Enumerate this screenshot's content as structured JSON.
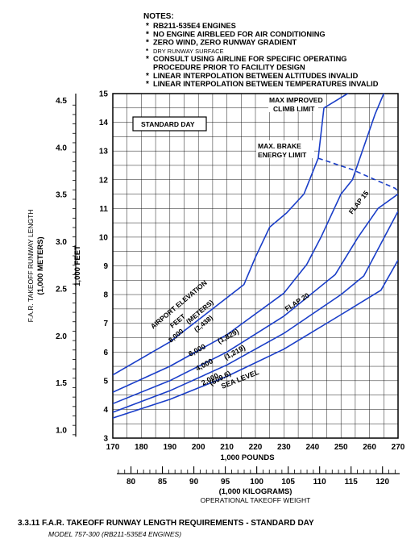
{
  "notes": {
    "title": "NOTES:",
    "items": [
      {
        "bullet": "*",
        "text": "RB211-535E4 ENGINES",
        "style": "bold"
      },
      {
        "bullet": "*",
        "text": "NO ENGINE AIRBLEED FOR AIR CONDITIONING",
        "style": "bold"
      },
      {
        "bullet": "*",
        "text": "ZERO WIND, ZERO RUNWAY GRADIENT",
        "style": "bold"
      },
      {
        "bullet": "*",
        "text": "DRY RUNWAY SURFACE",
        "style": "small"
      },
      {
        "bullet": "*",
        "text": "CONSULT USING AIRLINE FOR SPECIFIC OPERATING",
        "style": "bold"
      },
      {
        "bullet": "",
        "text": "PROCEDURE PRIOR TO FACILITY DESIGN",
        "style": "bold"
      },
      {
        "bullet": "*",
        "text": "LINEAR INTERPOLATION BETWEEN ALTITUDES INVALID",
        "style": "bold"
      },
      {
        "bullet": "*",
        "text": "LINEAR INTERPOLATION BETWEEN TEMPERATURES INVALID",
        "style": "bold"
      }
    ]
  },
  "caption": {
    "title": "3.3.11  F.A.R. TAKEOFF RUNWAY LENGTH REQUIREMENTS - STANDARD DAY",
    "subtitle": "MODEL  757-300 (RB211-535E4 ENGINES)"
  },
  "chart_data": {
    "type": "line",
    "condition_label": "STANDARD DAY",
    "xlabel": "1,000 POUNDS",
    "xlim": [
      170,
      270
    ],
    "x_ticks": [
      170,
      180,
      190,
      200,
      210,
      220,
      230,
      240,
      250,
      260,
      270
    ],
    "x2label": "(1,000 KILOGRAMS)",
    "x2_caption": "OPERATIONAL TAKEOFF WEIGHT",
    "x2_ticks": [
      80,
      85,
      90,
      95,
      100,
      105,
      110,
      115,
      120
    ],
    "ylabel": "1,000 FEET",
    "ylim": [
      3,
      15
    ],
    "y_ticks": [
      3,
      4,
      5,
      6,
      7,
      8,
      9,
      10,
      11,
      12,
      13,
      14,
      15
    ],
    "y2label": "F.A.R. TAKEOFF RUNWAY LENGTH",
    "y2label_units": "(1,000 METERS)",
    "y2_ticks": [
      "1.0",
      "1.5",
      "2.0",
      "2.5",
      "3.0",
      "3.5",
      "4.0",
      "4.5"
    ],
    "grid": true,
    "series": [
      {
        "name": "SEA LEVEL",
        "label_lines": [
          "SEA LEVEL"
        ],
        "x": [
          170,
          190,
          210,
          230,
          250,
          264,
          270
        ],
        "y": [
          3.7,
          4.35,
          5.15,
          6.1,
          7.3,
          8.15,
          9.2
        ]
      },
      {
        "name": "2,000 (609.6)",
        "label_lines": [
          "2,000",
          "(609.6)"
        ],
        "x": [
          170,
          190,
          210,
          230,
          250,
          258,
          270
        ],
        "y": [
          3.9,
          4.65,
          5.55,
          6.65,
          8.0,
          8.65,
          10.9
        ]
      },
      {
        "name": "4,000 (1,219)",
        "label_lines": [
          "4,000",
          "(1,219)"
        ],
        "x": [
          170,
          190,
          210,
          230,
          248,
          256,
          263,
          270
        ],
        "y": [
          4.2,
          5.0,
          6.0,
          7.25,
          8.7,
          10.0,
          11.0,
          11.5
        ]
      },
      {
        "name": "6,000 (1,829)",
        "label_lines": [
          "6,000",
          "(1,829)"
        ],
        "x": [
          170,
          190,
          210,
          230,
          238,
          243,
          250,
          254,
          262,
          265,
          270
        ],
        "y": [
          4.6,
          5.5,
          6.6,
          8.05,
          9.05,
          10.0,
          11.5,
          12.0,
          14.3,
          15.0,
          15.7
        ]
      },
      {
        "name": "8,000 (2,438)",
        "label_lines": [
          "AIRPORT ELEVATION",
          "FEET",
          "(METERS)",
          "8,000",
          "(2,438)"
        ],
        "x": [
          170,
          190,
          216,
          220,
          225,
          231,
          237,
          242
        ],
        "y": [
          5.2,
          6.35,
          8.35,
          9.3,
          10.35,
          10.85,
          11.5,
          12.75
        ]
      }
    ],
    "curve_labels": [
      "FLAP 15",
      "FLAP 20"
    ],
    "limit_lines": [
      {
        "name": "MAX. BRAKE ENERGY LIMIT",
        "label_lines": [
          "MAX. BRAKE",
          "ENERGY LIMIT"
        ],
        "x": [
          242,
          254,
          262,
          269,
          270
        ],
        "y": [
          12.75,
          12.35,
          12.0,
          11.7,
          11.6
        ]
      },
      {
        "name": "MAX IMPROVED CLIMB LIMIT",
        "label_lines": [
          "MAX IMPROVED",
          "CLIMB LIMIT"
        ],
        "x": [
          242,
          244,
          254,
          258
        ],
        "y": [
          12.75,
          14.5,
          15.1,
          15.15
        ]
      }
    ]
  }
}
